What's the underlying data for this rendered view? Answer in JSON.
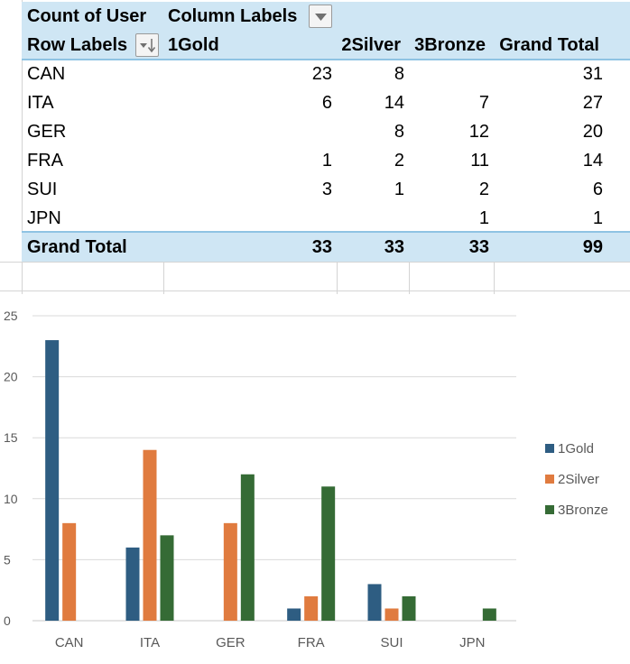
{
  "pivot": {
    "header1": {
      "value_field": "Count of User",
      "column_labels": "Column Labels"
    },
    "header2": {
      "row_labels": "Row Labels",
      "columns": [
        "1Gold",
        "2Silver",
        "3Bronze",
        "Grand Total"
      ]
    },
    "rows": [
      {
        "label": "CAN",
        "gold": "23",
        "silver": "8",
        "bronze": "",
        "total": "31"
      },
      {
        "label": "ITA",
        "gold": "6",
        "silver": "14",
        "bronze": "7",
        "total": "27"
      },
      {
        "label": "GER",
        "gold": "",
        "silver": "8",
        "bronze": "12",
        "total": "20"
      },
      {
        "label": "FRA",
        "gold": "1",
        "silver": "2",
        "bronze": "11",
        "total": "14"
      },
      {
        "label": "SUI",
        "gold": "3",
        "silver": "1",
        "bronze": "2",
        "total": "6"
      },
      {
        "label": "JPN",
        "gold": "",
        "silver": "",
        "bronze": "1",
        "total": "1"
      }
    ],
    "grand_total": {
      "label": "Grand Total",
      "gold": "33",
      "silver": "33",
      "bronze": "33",
      "total": "99"
    }
  },
  "colors": {
    "header_bg": "#cfe6f4",
    "gold": "#2e5d82",
    "silver": "#e07b3f",
    "bronze": "#356b35"
  },
  "chart_data": {
    "type": "bar",
    "categories": [
      "CAN",
      "ITA",
      "GER",
      "FRA",
      "SUI",
      "JPN"
    ],
    "series": [
      {
        "name": "1Gold",
        "values": [
          23,
          6,
          0,
          1,
          3,
          0
        ]
      },
      {
        "name": "2Silver",
        "values": [
          8,
          14,
          8,
          2,
          1,
          0
        ]
      },
      {
        "name": "3Bronze",
        "values": [
          0,
          7,
          12,
          11,
          2,
          1
        ]
      }
    ],
    "y_ticks": [
      "0",
      "5",
      "10",
      "15",
      "20",
      "25"
    ],
    "ylim": [
      0,
      25
    ],
    "legend_position": "right",
    "grid": true
  }
}
